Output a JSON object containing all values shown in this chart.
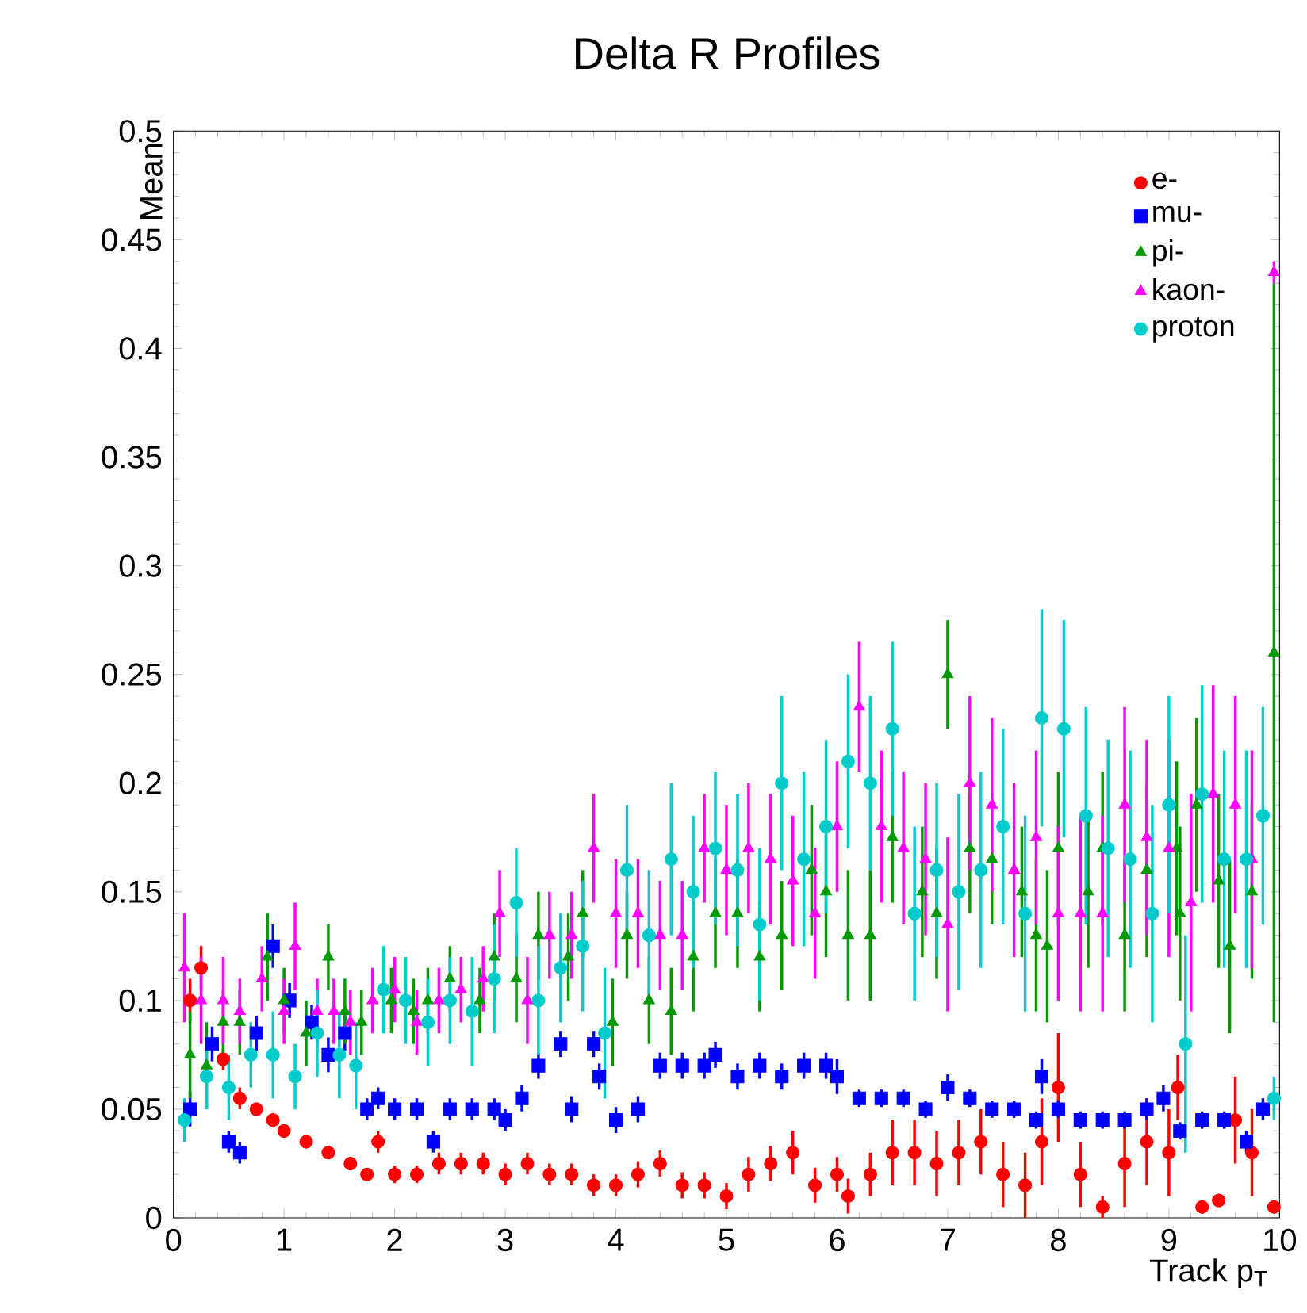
{
  "chart_data": {
    "type": "scatter",
    "title": "Delta R Profiles",
    "xlabel": "Track p$_{T}$",
    "ylabel": "Mean",
    "xlim": [
      0,
      10
    ],
    "ylim": [
      0,
      0.5
    ],
    "xticks": [
      0,
      1,
      2,
      3,
      4,
      5,
      6,
      7,
      8,
      9,
      10
    ],
    "yticks": [
      0,
      0.05,
      0.1,
      0.15,
      0.2,
      0.25,
      0.3,
      0.35,
      0.4,
      0.45,
      0.5
    ],
    "grid": false,
    "legend": "top right",
    "series": [
      {
        "name": "e-",
        "color": "#ff0000",
        "marker": "circle",
        "x": [
          0.15,
          0.25,
          0.45,
          0.6,
          0.75,
          0.9,
          1.0,
          1.2,
          1.4,
          1.6,
          1.75,
          1.85,
          2.0,
          2.2,
          2.4,
          2.6,
          2.8,
          3.0,
          3.2,
          3.4,
          3.6,
          3.8,
          4.0,
          4.2,
          4.4,
          4.6,
          4.8,
          5.0,
          5.2,
          5.4,
          5.6,
          5.8,
          6.0,
          6.1,
          6.3,
          6.5,
          6.7,
          6.9,
          7.1,
          7.3,
          7.5,
          7.7,
          7.85,
          8.0,
          8.2,
          8.4,
          8.6,
          8.8,
          9.0,
          9.08,
          9.3,
          9.45,
          9.6,
          9.75,
          9.95
        ],
        "values": [
          0.1,
          0.115,
          0.073,
          0.055,
          0.05,
          0.045,
          0.04,
          0.035,
          0.03,
          0.025,
          0.02,
          0.035,
          0.02,
          0.02,
          0.025,
          0.025,
          0.025,
          0.02,
          0.025,
          0.02,
          0.02,
          0.015,
          0.015,
          0.02,
          0.025,
          0.015,
          0.015,
          0.01,
          0.02,
          0.025,
          0.03,
          0.015,
          0.02,
          0.01,
          0.02,
          0.03,
          0.03,
          0.025,
          0.03,
          0.035,
          0.02,
          0.015,
          0.035,
          0.06,
          0.02,
          0.005,
          0.025,
          0.035,
          0.03,
          0.06,
          0.005,
          0.008,
          0.045,
          0.03,
          0.005
        ],
        "errors": [
          0.01,
          0.01,
          0.005,
          0.005,
          0.003,
          0.003,
          0.003,
          0.003,
          0.003,
          0.003,
          0.003,
          0.005,
          0.004,
          0.004,
          0.005,
          0.005,
          0.005,
          0.005,
          0.005,
          0.005,
          0.005,
          0.005,
          0.005,
          0.006,
          0.006,
          0.006,
          0.006,
          0.006,
          0.008,
          0.008,
          0.01,
          0.008,
          0.008,
          0.008,
          0.01,
          0.015,
          0.015,
          0.015,
          0.015,
          0.015,
          0.015,
          0.015,
          0.02,
          0.025,
          0.015,
          0.005,
          0.02,
          0.02,
          0.02,
          0.015,
          0.003,
          0.003,
          0.02,
          0.02,
          0.003
        ]
      },
      {
        "name": "mu-",
        "color": "#0000ff",
        "marker": "square",
        "x": [
          0.15,
          0.35,
          0.5,
          0.6,
          0.75,
          0.9,
          1.05,
          1.25,
          1.4,
          1.55,
          1.75,
          1.85,
          2.0,
          2.2,
          2.35,
          2.5,
          2.7,
          2.9,
          3.0,
          3.15,
          3.3,
          3.5,
          3.6,
          3.8,
          3.85,
          4.0,
          4.2,
          4.4,
          4.6,
          4.8,
          4.9,
          5.1,
          5.3,
          5.5,
          5.7,
          5.9,
          6.0,
          6.2,
          6.4,
          6.6,
          6.8,
          7.0,
          7.2,
          7.4,
          7.6,
          7.8,
          7.85,
          8.0,
          8.2,
          8.4,
          8.6,
          8.8,
          8.95,
          9.1,
          9.3,
          9.5,
          9.7,
          9.85
        ],
        "values": [
          0.05,
          0.08,
          0.035,
          0.03,
          0.085,
          0.125,
          0.1,
          0.09,
          0.075,
          0.085,
          0.05,
          0.055,
          0.05,
          0.05,
          0.035,
          0.05,
          0.05,
          0.05,
          0.045,
          0.055,
          0.07,
          0.08,
          0.05,
          0.08,
          0.065,
          0.045,
          0.05,
          0.07,
          0.07,
          0.07,
          0.075,
          0.065,
          0.07,
          0.065,
          0.07,
          0.07,
          0.065,
          0.055,
          0.055,
          0.055,
          0.05,
          0.06,
          0.055,
          0.05,
          0.05,
          0.045,
          0.065,
          0.05,
          0.045,
          0.045,
          0.045,
          0.05,
          0.055,
          0.04,
          0.045,
          0.045,
          0.035,
          0.05
        ],
        "errors": [
          0.008,
          0.008,
          0.005,
          0.005,
          0.008,
          0.01,
          0.008,
          0.008,
          0.008,
          0.008,
          0.005,
          0.005,
          0.005,
          0.005,
          0.005,
          0.005,
          0.005,
          0.005,
          0.005,
          0.006,
          0.006,
          0.006,
          0.006,
          0.006,
          0.006,
          0.006,
          0.006,
          0.006,
          0.006,
          0.006,
          0.006,
          0.006,
          0.006,
          0.006,
          0.006,
          0.006,
          0.008,
          0.004,
          0.004,
          0.004,
          0.004,
          0.006,
          0.004,
          0.004,
          0.004,
          0.004,
          0.008,
          0.004,
          0.004,
          0.004,
          0.004,
          0.005,
          0.006,
          0.004,
          0.004,
          0.004,
          0.005,
          0.005
        ]
      },
      {
        "name": "pi-",
        "color": "#009900",
        "marker": "triangle",
        "x": [
          0.15,
          0.3,
          0.45,
          0.6,
          0.85,
          1.0,
          1.2,
          1.4,
          1.55,
          1.7,
          1.97,
          2.17,
          2.3,
          2.5,
          2.77,
          2.9,
          3.1,
          3.3,
          3.57,
          3.7,
          3.97,
          4.1,
          4.3,
          4.5,
          4.7,
          4.9,
          5.1,
          5.3,
          5.5,
          5.77,
          5.9,
          6.1,
          6.3,
          6.5,
          6.77,
          6.9,
          7.0,
          7.2,
          7.4,
          7.67,
          7.8,
          7.9,
          8.0,
          8.27,
          8.4,
          8.6,
          8.8,
          9.07,
          9.1,
          9.25,
          9.45,
          9.55,
          9.75,
          9.95
        ],
        "values": [
          0.075,
          0.07,
          0.09,
          0.09,
          0.12,
          0.1,
          0.085,
          0.12,
          0.095,
          0.09,
          0.1,
          0.095,
          0.1,
          0.11,
          0.1,
          0.12,
          0.11,
          0.13,
          0.12,
          0.14,
          0.09,
          0.13,
          0.1,
          0.095,
          0.12,
          0.14,
          0.14,
          0.12,
          0.13,
          0.16,
          0.15,
          0.13,
          0.13,
          0.175,
          0.15,
          0.14,
          0.25,
          0.17,
          0.165,
          0.15,
          0.13,
          0.125,
          0.17,
          0.15,
          0.17,
          0.13,
          0.16,
          0.17,
          0.14,
          0.19,
          0.155,
          0.125,
          0.15,
          0.26
        ],
        "errors": [
          0.02,
          0.02,
          0.015,
          0.015,
          0.02,
          0.015,
          0.015,
          0.015,
          0.015,
          0.015,
          0.015,
          0.015,
          0.015,
          0.015,
          0.015,
          0.02,
          0.02,
          0.02,
          0.02,
          0.02,
          0.02,
          0.02,
          0.02,
          0.02,
          0.025,
          0.025,
          0.025,
          0.025,
          0.025,
          0.03,
          0.03,
          0.03,
          0.03,
          0.03,
          0.03,
          0.03,
          0.025,
          0.03,
          0.03,
          0.03,
          0.035,
          0.035,
          0.035,
          0.035,
          0.035,
          0.035,
          0.04,
          0.04,
          0.04,
          0.04,
          0.04,
          0.04,
          0.04,
          0.17
        ]
      },
      {
        "name": "kaon-",
        "color": "#ff00ff",
        "marker": "triangle",
        "x": [
          0.1,
          0.25,
          0.45,
          0.6,
          0.8,
          1.0,
          1.1,
          1.3,
          1.45,
          1.6,
          1.8,
          2.0,
          2.2,
          2.4,
          2.6,
          2.8,
          2.95,
          3.2,
          3.4,
          3.6,
          3.8,
          4.0,
          4.2,
          4.4,
          4.6,
          4.8,
          5.0,
          5.2,
          5.4,
          5.6,
          5.8,
          6.0,
          6.2,
          6.4,
          6.6,
          6.8,
          7.0,
          7.2,
          7.4,
          7.6,
          7.8,
          8.0,
          8.2,
          8.4,
          8.6,
          8.8,
          9.0,
          9.2,
          9.4,
          9.6,
          9.75,
          9.95
        ],
        "values": [
          0.115,
          0.1,
          0.1,
          0.095,
          0.11,
          0.095,
          0.125,
          0.095,
          0.095,
          0.09,
          0.1,
          0.105,
          0.09,
          0.1,
          0.105,
          0.11,
          0.14,
          0.1,
          0.13,
          0.13,
          0.17,
          0.14,
          0.14,
          0.13,
          0.13,
          0.17,
          0.16,
          0.17,
          0.165,
          0.155,
          0.14,
          0.18,
          0.235,
          0.18,
          0.17,
          0.165,
          0.135,
          0.2,
          0.19,
          0.16,
          0.175,
          0.14,
          0.14,
          0.14,
          0.19,
          0.175,
          0.17,
          0.145,
          0.195,
          0.19,
          0.165,
          0.435
        ],
        "errors": [
          0.025,
          0.02,
          0.02,
          0.015,
          0.015,
          0.015,
          0.02,
          0.015,
          0.015,
          0.015,
          0.015,
          0.015,
          0.015,
          0.015,
          0.015,
          0.015,
          0.02,
          0.02,
          0.02,
          0.02,
          0.025,
          0.025,
          0.025,
          0.025,
          0.025,
          0.025,
          0.03,
          0.03,
          0.03,
          0.03,
          0.03,
          0.03,
          0.03,
          0.035,
          0.035,
          0.035,
          0.04,
          0.04,
          0.04,
          0.04,
          0.04,
          0.04,
          0.045,
          0.045,
          0.045,
          0.045,
          0.05,
          0.05,
          0.05,
          0.05,
          0.05,
          0.005
        ]
      },
      {
        "name": "proton",
        "color": "#00cccc",
        "marker": "circle",
        "x": [
          0.1,
          0.3,
          0.5,
          0.7,
          0.9,
          1.1,
          1.3,
          1.5,
          1.65,
          1.9,
          2.1,
          2.3,
          2.5,
          2.7,
          2.9,
          3.1,
          3.3,
          3.5,
          3.7,
          3.9,
          4.1,
          4.3,
          4.5,
          4.7,
          4.9,
          5.1,
          5.3,
          5.5,
          5.7,
          5.9,
          6.1,
          6.3,
          6.5,
          6.7,
          6.9,
          7.1,
          7.3,
          7.5,
          7.7,
          7.85,
          8.05,
          8.25,
          8.45,
          8.65,
          8.85,
          9.0,
          9.15,
          9.3,
          9.5,
          9.7,
          9.85,
          9.95
        ],
        "values": [
          0.045,
          0.065,
          0.06,
          0.075,
          0.075,
          0.065,
          0.085,
          0.075,
          0.07,
          0.105,
          0.1,
          0.09,
          0.1,
          0.095,
          0.11,
          0.145,
          0.1,
          0.115,
          0.125,
          0.085,
          0.16,
          0.13,
          0.165,
          0.15,
          0.17,
          0.16,
          0.135,
          0.2,
          0.165,
          0.18,
          0.21,
          0.2,
          0.225,
          0.14,
          0.16,
          0.15,
          0.16,
          0.18,
          0.14,
          0.23,
          0.225,
          0.185,
          0.17,
          0.165,
          0.14,
          0.19,
          0.08,
          0.195,
          0.165,
          0.165,
          0.185,
          0.055
        ],
        "errors": [
          0.01,
          0.015,
          0.015,
          0.015,
          0.02,
          0.015,
          0.02,
          0.02,
          0.02,
          0.02,
          0.02,
          0.02,
          0.02,
          0.025,
          0.025,
          0.025,
          0.025,
          0.025,
          0.03,
          0.03,
          0.03,
          0.03,
          0.035,
          0.035,
          0.035,
          0.035,
          0.035,
          0.04,
          0.04,
          0.04,
          0.04,
          0.04,
          0.04,
          0.04,
          0.04,
          0.045,
          0.045,
          0.045,
          0.045,
          0.05,
          0.05,
          0.05,
          0.05,
          0.05,
          0.05,
          0.05,
          0.05,
          0.05,
          0.05,
          0.05,
          0.05,
          0.01
        ]
      }
    ]
  }
}
